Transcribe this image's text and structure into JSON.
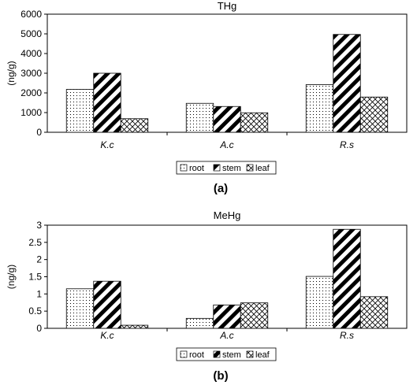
{
  "colors": {
    "ink": "#000000",
    "background": "#ffffff"
  },
  "chart_data": [
    {
      "type": "bar",
      "title": "THg",
      "panel_label": "(a)",
      "ylabel": "(ng/g)",
      "xlabel": "",
      "categories": [
        "K.c",
        "A.c",
        "R.s"
      ],
      "ylim": [
        0,
        6000
      ],
      "yticks": [
        0,
        1000,
        2000,
        3000,
        4000,
        5000,
        6000
      ],
      "grid": false,
      "legend_position": "bottom-center",
      "series": [
        {
          "name": "root",
          "pattern": "dots",
          "values": [
            2180,
            1470,
            2420
          ]
        },
        {
          "name": "stem",
          "pattern": "wide-diagonal",
          "values": [
            3000,
            1310,
            4970
          ]
        },
        {
          "name": "leaf",
          "pattern": "crosshatch",
          "values": [
            690,
            990,
            1790
          ]
        }
      ]
    },
    {
      "type": "bar",
      "title": "MeHg",
      "panel_label": "(b)",
      "ylabel": "(ng/g)",
      "xlabel": "",
      "categories": [
        "K.c",
        "A.c",
        "R.s"
      ],
      "ylim": [
        0,
        3
      ],
      "yticks": [
        "0",
        "0.5",
        "1",
        "1.5",
        "2",
        "2.5",
        "3"
      ],
      "grid": false,
      "legend_position": "bottom-center",
      "series": [
        {
          "name": "root",
          "pattern": "dots",
          "values": [
            1.15,
            0.29,
            1.51
          ]
        },
        {
          "name": "stem",
          "pattern": "wide-diagonal",
          "values": [
            1.37,
            0.68,
            2.88
          ]
        },
        {
          "name": "leaf",
          "pattern": "crosshatch",
          "values": [
            0.09,
            0.74,
            0.92
          ]
        }
      ]
    }
  ]
}
